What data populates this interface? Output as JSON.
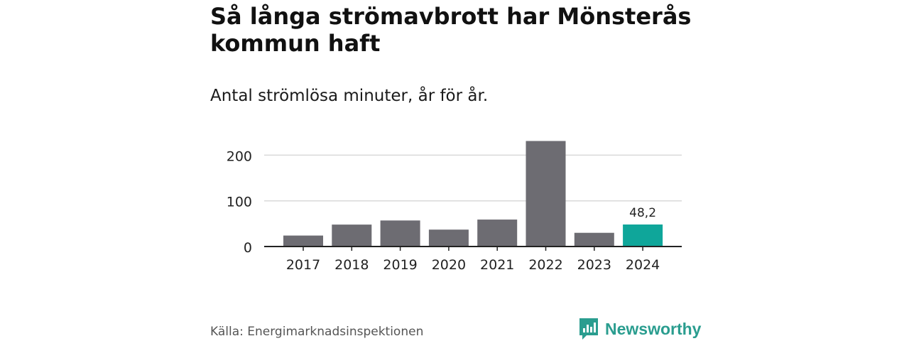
{
  "title": "Så långa strömavbrott har Mönsterås kommun haft",
  "subtitle": "Antal strömlösa minuter, år för år.",
  "chart_data": {
    "type": "bar",
    "categories": [
      "2017",
      "2018",
      "2019",
      "2020",
      "2021",
      "2022",
      "2023",
      "2024"
    ],
    "values": [
      24,
      48,
      57,
      37,
      59,
      231,
      30,
      48.2
    ],
    "highlight_index": 7,
    "highlight_label": "48,2",
    "yticks": [
      0,
      100,
      200
    ],
    "ylim": [
      0,
      240
    ],
    "xlabel": "",
    "ylabel": "",
    "grid": true,
    "colors": {
      "bar": "#6d6c72",
      "highlight": "#0fa69a",
      "grid": "#d9d9d9",
      "axis": "#222222"
    }
  },
  "footer": {
    "source": "Källa: Energimarknadsinspektionen",
    "brand": "Newsworthy",
    "brand_icon": "newsworthy-logo-icon",
    "brand_color": "#2a9d8f"
  }
}
